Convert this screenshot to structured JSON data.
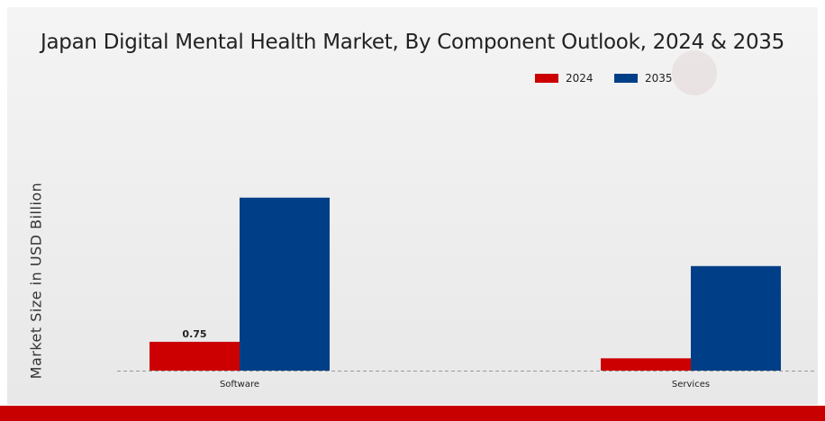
{
  "chart_data": {
    "type": "bar",
    "title": "Japan Digital Mental Health Market, By Component Outlook, 2024 & 2035",
    "ylabel": "Market Size in USD Billion",
    "xlabel": "",
    "categories": [
      "Software",
      "Services"
    ],
    "series": [
      {
        "name": "2024",
        "color": "#cc0000",
        "values": [
          0.75,
          0.32
        ]
      },
      {
        "name": "2035",
        "color": "#003f87",
        "values": [
          4.5,
          2.72
        ]
      }
    ],
    "data_labels": [
      {
        "series": 0,
        "index": 0,
        "text": "0.75"
      }
    ],
    "ylim": [
      0,
      6.6
    ],
    "grid": false,
    "legend_position": "top-right"
  }
}
